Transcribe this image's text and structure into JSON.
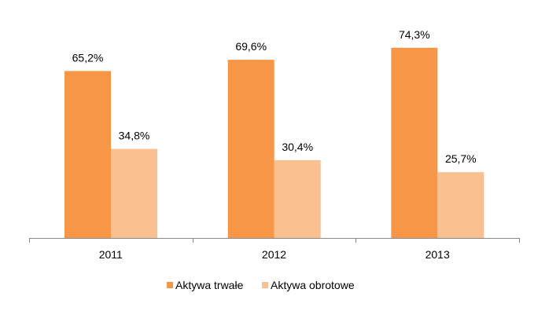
{
  "chart_data": {
    "type": "bar",
    "categories": [
      "2011",
      "2012",
      "2013"
    ],
    "series": [
      {
        "name": "Aktywa trwałe",
        "values": [
          65.2,
          69.6,
          74.3
        ],
        "labels": [
          "65,2%",
          "69,6%",
          "74,3%"
        ],
        "color": "#F79646"
      },
      {
        "name": "Aktywa obrotowe",
        "values": [
          34.8,
          30.4,
          25.7
        ],
        "labels": [
          "34,8%",
          "30,4%",
          "25,7%"
        ],
        "color": "#FAC090"
      }
    ],
    "ylim": [
      0,
      100
    ],
    "grid": false,
    "legend": "bottom"
  }
}
